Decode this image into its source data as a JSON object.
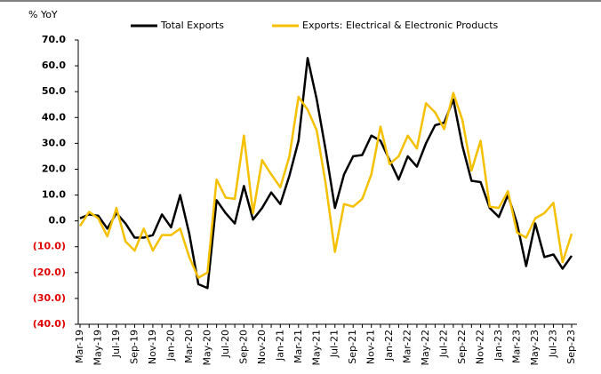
{
  "chart_data": {
    "type": "line",
    "y_label": "% YoY",
    "categories": [
      "Mar-19",
      null,
      "May-19",
      null,
      "Jul-19",
      null,
      "Sep-19",
      null,
      "Nov-19",
      null,
      "Jan-20",
      null,
      "Mar-20",
      null,
      "May-20",
      null,
      "Jul-20",
      null,
      "Sep-20",
      null,
      "Nov-20",
      null,
      "Jan-21",
      null,
      "Mar-21",
      null,
      "May-21",
      null,
      "Jul-21",
      null,
      "Sep-21",
      null,
      "Nov-21",
      null,
      "Jan-22",
      null,
      "Mar-22",
      null,
      "May-22",
      null,
      "Jul-22",
      null,
      "Sep-22",
      null,
      "Nov-22",
      null,
      "Jan-23",
      null,
      "Mar-23",
      null,
      "May-23",
      null,
      "Jul-23",
      null,
      "Sep-23"
    ],
    "series": [
      {
        "name": "Total Exports",
        "color": "#000000",
        "values": [
          1,
          2.5,
          2,
          -3,
          3,
          -1,
          -6.5,
          -6.5,
          -5.5,
          2.5,
          -2.5,
          10,
          -5,
          -24.5,
          -26,
          8,
          3,
          -1,
          13.5,
          0.5,
          5,
          11,
          6.5,
          17.5,
          31,
          63,
          47,
          27,
          5,
          18,
          25,
          25.5,
          33,
          31,
          23.5,
          16,
          25,
          21,
          30,
          37,
          38,
          47,
          29,
          15.5,
          15,
          5,
          1.5,
          10,
          -1,
          -17.5,
          -1,
          -14,
          -13,
          -18.5,
          -13.5
        ]
      },
      {
        "name": "Exports: Electrical & Electronic Products",
        "color": "#f5c000",
        "values": [
          -2,
          3.5,
          1,
          -6,
          5,
          -8,
          -11.5,
          -3,
          -11.5,
          -5.5,
          -5.5,
          -3,
          -14,
          -22,
          -20,
          16,
          9,
          8.5,
          33,
          3,
          23.5,
          18,
          13,
          25,
          48,
          43,
          35,
          14,
          -12,
          6.5,
          5.5,
          8.5,
          18,
          36.5,
          22,
          25,
          33,
          28,
          45.5,
          42,
          35.5,
          49.5,
          39,
          19.5,
          31,
          5.5,
          5,
          11.5,
          -4.5,
          -6.5,
          1,
          3,
          7,
          -16,
          -5
        ]
      }
    ],
    "ylim": [
      -40,
      70
    ],
    "yticks": [
      {
        "value": -40,
        "label": "(40.0)"
      },
      {
        "value": -30,
        "label": "(30.0)"
      },
      {
        "value": -20,
        "label": "(20.0)"
      },
      {
        "value": -10,
        "label": "(10.0)"
      },
      {
        "value": 0,
        "label": "0.0"
      },
      {
        "value": 10,
        "label": "10.0"
      },
      {
        "value": 20,
        "label": "20.0"
      },
      {
        "value": 30,
        "label": "30.0"
      },
      {
        "value": 40,
        "label": "40.0"
      },
      {
        "value": 50,
        "label": "50.0"
      },
      {
        "value": 60,
        "label": "60.0"
      },
      {
        "value": 70,
        "label": "70.0"
      }
    ]
  }
}
